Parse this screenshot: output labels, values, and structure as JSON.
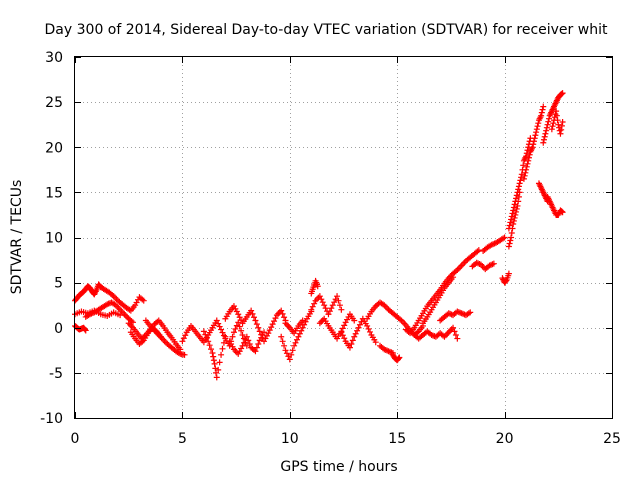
{
  "chart_data": {
    "type": "scatter",
    "title": "Day 300 of 2014, Sidereal Day-to-day VTEC variation (SDTVAR) for receiver whit",
    "xlabel": "GPS time / hours",
    "ylabel": "SDTVAR / TECUs",
    "xlim": [
      0,
      25
    ],
    "ylim": [
      -10,
      30
    ],
    "xticks": [
      0,
      5,
      10,
      15,
      20,
      25
    ],
    "xtick_labels": [
      "0",
      "5",
      "10",
      "15",
      "20",
      "25"
    ],
    "yticks": [
      -10,
      -5,
      0,
      5,
      10,
      15,
      20,
      25,
      30
    ],
    "ytick_labels": [
      "-10",
      "-5",
      "0",
      "5",
      "10",
      "15",
      "20",
      "25",
      "30"
    ],
    "grid": true,
    "marker": "+",
    "series": [
      {
        "name": "SDTVAR",
        "color": "#ff0000",
        "segments": [
          {
            "x": [
              0.0,
              0.1,
              0.2,
              0.3,
              0.4,
              0.5,
              0.6,
              0.7,
              0.8,
              0.9,
              1.0,
              1.1,
              1.2
            ],
            "y": [
              3.0,
              3.3,
              3.6,
              3.8,
              4.0,
              4.3,
              4.6,
              4.4,
              4.0,
              3.7,
              4.2,
              4.8,
              4.5
            ]
          },
          {
            "x": [
              1.2,
              1.4,
              1.6,
              1.8,
              2.0,
              2.2,
              2.4,
              2.6,
              2.8,
              3.0,
              3.2
            ],
            "y": [
              4.5,
              4.2,
              3.9,
              3.5,
              3.0,
              2.6,
              2.2,
              1.9,
              2.5,
              3.4,
              3.0
            ]
          },
          {
            "x": [
              0.0,
              0.1,
              0.2,
              0.3,
              0.4,
              0.5
            ],
            "y": [
              0.2,
              0.0,
              -0.2,
              -0.1,
              0.0,
              -0.3
            ]
          },
          {
            "x": [
              0.0,
              0.3,
              0.6,
              0.9,
              1.2,
              1.5,
              1.8,
              2.1
            ],
            "y": [
              1.5,
              1.8,
              1.6,
              1.9,
              1.5,
              1.3,
              1.7,
              1.4
            ]
          },
          {
            "x": [
              0.5,
              0.7,
              0.9,
              1.1,
              1.3,
              1.5,
              1.7,
              1.9,
              2.1,
              2.3,
              2.5,
              2.7
            ],
            "y": [
              1.2,
              1.5,
              1.7,
              2.0,
              2.3,
              2.6,
              2.8,
              2.5,
              2.0,
              1.5,
              1.0,
              0.6
            ]
          },
          {
            "x": [
              2.5,
              2.7,
              2.9,
              3.1,
              3.3,
              3.5,
              3.7,
              3.9,
              4.1,
              4.3,
              4.5,
              4.7,
              4.9
            ],
            "y": [
              0.5,
              0.0,
              -0.6,
              -1.2,
              -0.8,
              -0.2,
              0.4,
              0.8,
              0.2,
              -0.5,
              -1.1,
              -1.8,
              -2.4
            ]
          },
          {
            "x": [
              3.3,
              3.5,
              3.7,
              3.9,
              4.1,
              4.3,
              4.5,
              4.7,
              4.9,
              5.1
            ],
            "y": [
              0.8,
              0.2,
              -0.3,
              -0.8,
              -1.3,
              -1.8,
              -2.2,
              -2.6,
              -2.9,
              -3.0
            ]
          },
          {
            "x": [
              2.6,
              2.8,
              3.0,
              3.2,
              3.4,
              3.6,
              3.8,
              4.0
            ],
            "y": [
              -0.5,
              -1.2,
              -1.8,
              -1.4,
              -0.6,
              0.0,
              -0.4,
              -1.0
            ]
          },
          {
            "x": [
              5.0,
              5.2,
              5.4,
              5.6,
              5.8,
              6.0,
              6.2,
              6.4,
              6.6,
              6.8,
              7.0,
              7.2,
              7.4,
              7.6,
              7.8,
              8.0
            ],
            "y": [
              -1.5,
              -0.5,
              0.2,
              -0.4,
              -1.0,
              -1.6,
              -0.8,
              0.0,
              0.8,
              -0.2,
              -1.2,
              -2.0,
              -0.5,
              0.6,
              -0.8,
              -2.0
            ]
          },
          {
            "x": [
              6.0,
              6.2,
              6.4,
              6.5,
              6.6,
              6.8,
              7.0
            ],
            "y": [
              -0.4,
              -1.5,
              -2.8,
              -4.0,
              -5.5,
              -3.0,
              -1.0
            ]
          },
          {
            "x": [
              7.0,
              7.2,
              7.4,
              7.6,
              7.8,
              8.0,
              8.2,
              8.4,
              8.6,
              8.8,
              9.0,
              9.2,
              9.4,
              9.6,
              9.8
            ],
            "y": [
              1.0,
              1.8,
              2.4,
              1.5,
              0.5,
              1.2,
              1.9,
              0.8,
              -0.4,
              -1.5,
              -0.6,
              0.4,
              1.4,
              1.9,
              0.8
            ]
          },
          {
            "x": [
              7.2,
              7.4,
              7.6,
              7.8,
              8.0,
              8.2,
              8.4,
              8.6,
              8.8
            ],
            "y": [
              -1.5,
              -2.4,
              -2.9,
              -2.0,
              -1.0,
              -2.2,
              -2.6,
              -1.4,
              -0.5
            ]
          },
          {
            "x": [
              9.6,
              9.8,
              10.0,
              10.2,
              10.4,
              10.6,
              10.8,
              11.0
            ],
            "y": [
              -1.0,
              -2.5,
              -3.5,
              -2.0,
              -1.0,
              0.0,
              1.0,
              1.8
            ]
          },
          {
            "x": [
              9.8,
              10.0,
              10.2,
              10.4,
              10.6
            ],
            "y": [
              0.5,
              0.0,
              -0.6,
              0.2,
              0.8
            ]
          },
          {
            "x": [
              11.0,
              11.2,
              11.4,
              11.6,
              11.8,
              12.0,
              12.2,
              12.4
            ],
            "y": [
              2.0,
              3.0,
              3.5,
              2.5,
              1.5,
              2.5,
              3.5,
              2.0
            ]
          },
          {
            "x": [
              11.0,
              11.1,
              11.2,
              11.3
            ],
            "y": [
              3.8,
              4.5,
              5.2,
              4.6
            ]
          },
          {
            "x": [
              11.4,
              11.6,
              11.8,
              12.0,
              12.2,
              12.4,
              12.6,
              12.8,
              13.0
            ],
            "y": [
              0.5,
              1.0,
              0.2,
              -0.5,
              -1.2,
              -0.4,
              0.6,
              1.5,
              0.8
            ]
          },
          {
            "x": [
              12.4,
              12.6,
              12.8,
              13.0,
              13.2,
              13.4,
              13.6,
              13.8,
              14.0
            ],
            "y": [
              -0.5,
              -1.5,
              -2.2,
              -1.0,
              0.0,
              1.0,
              0.2,
              -0.8,
              -1.6
            ]
          },
          {
            "x": [
              13.6,
              13.8,
              14.0,
              14.2,
              14.4,
              14.6,
              14.8,
              15.0,
              15.2,
              15.4,
              15.6,
              15.8,
              16.0,
              16.2
            ],
            "y": [
              1.0,
              1.8,
              2.4,
              2.8,
              2.5,
              2.0,
              1.6,
              1.2,
              0.8,
              0.3,
              -0.3,
              -0.8,
              -0.4,
              0.2
            ]
          },
          {
            "x": [
              14.2,
              14.4,
              14.6,
              14.8
            ],
            "y": [
              -2.0,
              -2.4,
              -2.6,
              -2.8
            ]
          },
          {
            "x": [
              14.8,
              14.9,
              15.0,
              15.1
            ],
            "y": [
              -3.0,
              -3.4,
              -3.6,
              -3.3
            ]
          },
          {
            "x": [
              15.4,
              15.6,
              15.8,
              16.0,
              16.2,
              16.4,
              16.6,
              16.8,
              17.0,
              17.2,
              17.4,
              17.6,
              17.8,
              18.0,
              18.2,
              18.4,
              18.6,
              18.8
            ],
            "y": [
              -0.2,
              -0.6,
              0.0,
              0.8,
              1.6,
              2.4,
              3.0,
              3.6,
              4.2,
              4.9,
              5.5,
              6.0,
              6.4,
              6.9,
              7.4,
              7.8,
              8.2,
              8.6
            ]
          },
          {
            "x": [
              16.2,
              16.4,
              16.6,
              16.8,
              17.0,
              17.2,
              17.4,
              17.6
            ],
            "y": [
              0.5,
              1.2,
              2.0,
              2.8,
              3.6,
              4.4,
              5.0,
              5.6
            ]
          },
          {
            "x": [
              15.8,
              16.0,
              16.2,
              16.4,
              16.6,
              16.8,
              17.0,
              17.2,
              17.4,
              17.6,
              17.8
            ],
            "y": [
              -0.8,
              -1.2,
              -0.8,
              -0.4,
              -0.8,
              -1.0,
              -0.6,
              -1.0,
              -0.5,
              0.0,
              -1.2
            ]
          },
          {
            "x": [
              17.0,
              17.2,
              17.4,
              17.6,
              17.8,
              18.0,
              18.2,
              18.4
            ],
            "y": [
              0.8,
              1.2,
              1.6,
              1.4,
              1.8,
              1.6,
              1.4,
              1.7
            ]
          },
          {
            "x": [
              18.5,
              18.7,
              18.9,
              19.1,
              19.3,
              19.5
            ],
            "y": [
              6.8,
              7.2,
              7.0,
              6.5,
              6.9,
              7.1
            ]
          },
          {
            "x": [
              19.0,
              19.2,
              19.4,
              19.6,
              19.8,
              20.0
            ],
            "y": [
              8.5,
              8.9,
              9.2,
              9.4,
              9.7,
              10.0
            ]
          },
          {
            "x": [
              19.9,
              20.0,
              20.1,
              20.2
            ],
            "y": [
              5.5,
              5.0,
              5.3,
              6.0
            ]
          },
          {
            "x": [
              20.2,
              20.3,
              20.4,
              20.5,
              20.6,
              20.7,
              20.8,
              20.9,
              21.0,
              21.1,
              21.2
            ],
            "y": [
              11.0,
              12.0,
              13.0,
              14.0,
              15.0,
              16.0,
              17.0,
              18.5,
              19.0,
              20.0,
              21.0
            ]
          },
          {
            "x": [
              20.2,
              20.3,
              20.4,
              20.5,
              20.6,
              20.7
            ],
            "y": [
              9.0,
              10.0,
              11.5,
              12.5,
              13.5,
              15.0
            ]
          },
          {
            "x": [
              20.9,
              21.0,
              21.1,
              21.2,
              21.3,
              21.4,
              21.5,
              21.6,
              21.7,
              21.8
            ],
            "y": [
              16.5,
              17.5,
              18.5,
              19.5,
              20.0,
              21.0,
              22.0,
              23.0,
              23.5,
              24.5
            ]
          },
          {
            "x": [
              21.8,
              21.9,
              22.0,
              22.1,
              22.2,
              22.3,
              22.4,
              22.5,
              22.6,
              22.7
            ],
            "y": [
              20.5,
              21.5,
              22.5,
              23.5,
              24.0,
              24.5,
              25.0,
              25.5,
              25.8,
              26.0
            ]
          },
          {
            "x": [
              21.6,
              21.7,
              21.8,
              21.9,
              22.0
            ],
            "y": [
              16.0,
              15.5,
              15.0,
              14.5,
              14.0
            ]
          },
          {
            "x": [
              22.0,
              22.1,
              22.2,
              22.3,
              22.4,
              22.5,
              22.6,
              22.7
            ],
            "y": [
              14.5,
              14.0,
              13.5,
              13.0,
              12.5,
              12.5,
              13.0,
              12.8
            ]
          },
          {
            "x": [
              22.2,
              22.3,
              22.4,
              22.5,
              22.6,
              22.7
            ],
            "y": [
              22.0,
              23.0,
              24.0,
              22.5,
              21.5,
              22.8
            ]
          }
        ]
      }
    ]
  }
}
